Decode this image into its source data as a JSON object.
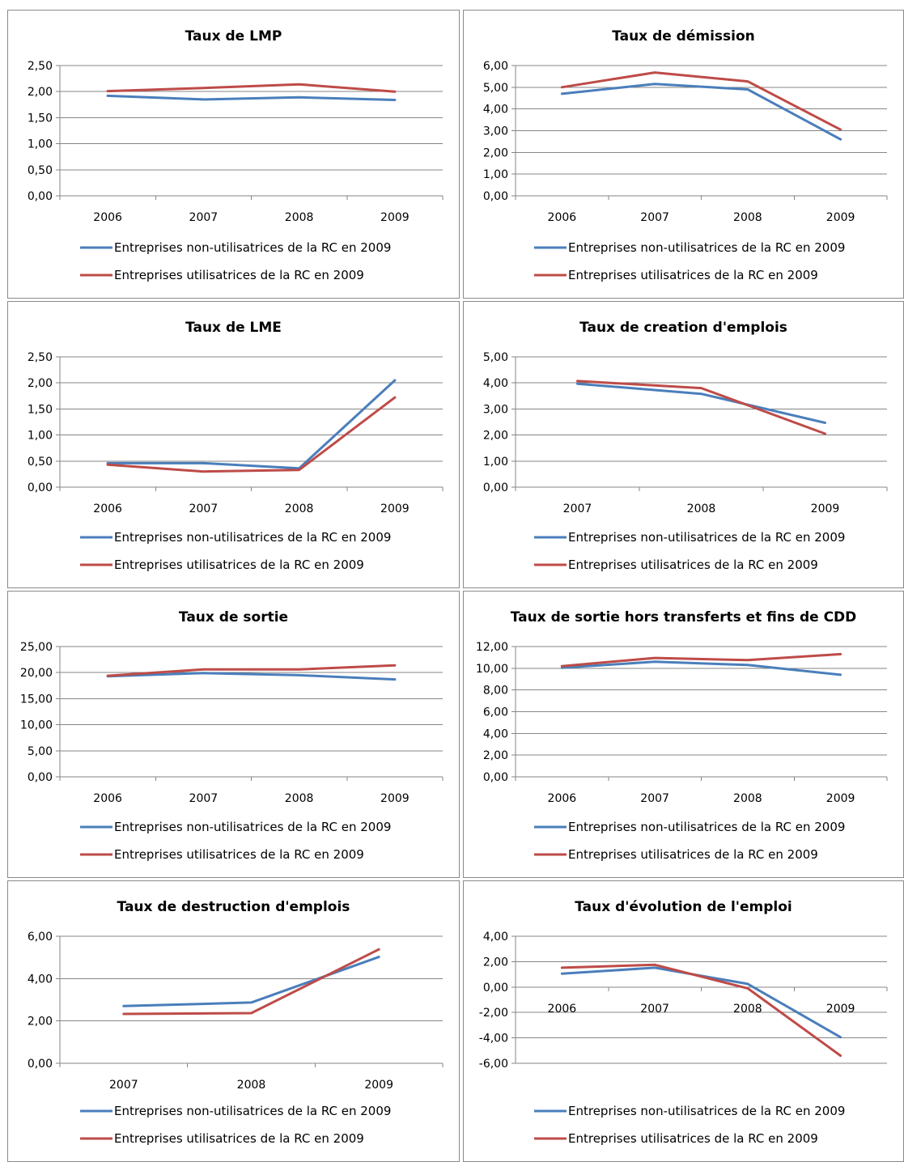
{
  "legend": {
    "series_a": "Entreprises non-utilisatrices de la RC en 2009",
    "series_b": "Entreprises utilisatrices de la RC en 2009"
  },
  "colors": {
    "series_a": "#4a7ebb",
    "series_b": "#be4b48",
    "axis": "#868686",
    "grid": "#868686"
  },
  "chart_data": [
    {
      "type": "line",
      "title": "Taux de LMP",
      "categories": [
        "2006",
        "2007",
        "2008",
        "2009"
      ],
      "ylim": [
        0,
        2.5
      ],
      "yticks": [
        "0,00",
        "0,50",
        "1,00",
        "1,50",
        "2,00",
        "2,50"
      ],
      "series": [
        {
          "name": "Entreprises non-utilisatrices de la RC en 2009",
          "values": [
            1.92,
            1.85,
            1.89,
            1.84
          ]
        },
        {
          "name": "Entreprises utilisatrices de la RC en 2009",
          "values": [
            2.01,
            2.07,
            2.14,
            2.0
          ]
        }
      ],
      "grid": true,
      "legend": "bottom"
    },
    {
      "type": "line",
      "title": "Taux de démission",
      "categories": [
        "2006",
        "2007",
        "2008",
        "2009"
      ],
      "ylim": [
        0,
        6
      ],
      "yticks": [
        "0,00",
        "1,00",
        "2,00",
        "3,00",
        "4,00",
        "5,00",
        "6,00"
      ],
      "series": [
        {
          "name": "Entreprises non-utilisatrices de la RC en 2009",
          "values": [
            4.7,
            5.15,
            4.9,
            2.6
          ]
        },
        {
          "name": "Entreprises utilisatrices de la RC en 2009",
          "values": [
            5.0,
            5.68,
            5.27,
            3.05
          ]
        }
      ],
      "grid": true,
      "legend": "bottom"
    },
    {
      "type": "line",
      "title": "Taux de LME",
      "categories": [
        "2006",
        "2007",
        "2008",
        "2009"
      ],
      "ylim": [
        0,
        2.5
      ],
      "yticks": [
        "0,00",
        "0,50",
        "1,00",
        "1,50",
        "2,00",
        "2,50"
      ],
      "series": [
        {
          "name": "Entreprises non-utilisatrices de la RC en 2009",
          "values": [
            0.46,
            0.46,
            0.36,
            2.05
          ]
        },
        {
          "name": "Entreprises utilisatrices de la RC en 2009",
          "values": [
            0.43,
            0.3,
            0.33,
            1.72
          ]
        }
      ],
      "grid": true,
      "legend": "bottom"
    },
    {
      "type": "line",
      "title": "Taux de creation d'emplois",
      "categories": [
        "2007",
        "2008",
        "2009"
      ],
      "ylim": [
        0,
        5
      ],
      "yticks": [
        "0,00",
        "1,00",
        "2,00",
        "3,00",
        "4,00",
        "5,00"
      ],
      "series": [
        {
          "name": "Entreprises non-utilisatrices de la RC en 2009",
          "values": [
            3.97,
            3.58,
            2.47
          ]
        },
        {
          "name": "Entreprises utilisatrices de la RC en 2009",
          "values": [
            4.07,
            3.8,
            2.05
          ]
        }
      ],
      "grid": true,
      "legend": "bottom"
    },
    {
      "type": "line",
      "title": "Taux de sortie",
      "categories": [
        "2006",
        "2007",
        "2008",
        "2009"
      ],
      "ylim": [
        0,
        25
      ],
      "yticks": [
        "0,00",
        "5,00",
        "10,00",
        "15,00",
        "20,00",
        "25,00"
      ],
      "series": [
        {
          "name": "Entreprises non-utilisatrices de la RC en 2009",
          "values": [
            19.3,
            19.9,
            19.5,
            18.7
          ]
        },
        {
          "name": "Entreprises utilisatrices de la RC en 2009",
          "values": [
            19.4,
            20.6,
            20.6,
            21.4
          ]
        }
      ],
      "grid": true,
      "legend": "bottom"
    },
    {
      "type": "line",
      "title": "Taux de sortie hors transferts et fins de CDD",
      "categories": [
        "2006",
        "2007",
        "2008",
        "2009"
      ],
      "ylim": [
        0,
        12
      ],
      "yticks": [
        "0,00",
        "2,00",
        "4,00",
        "6,00",
        "8,00",
        "10,00",
        "12,00"
      ],
      "series": [
        {
          "name": "Entreprises non-utilisatrices de la RC en 2009",
          "values": [
            10.05,
            10.6,
            10.3,
            9.4
          ]
        },
        {
          "name": "Entreprises utilisatrices de la RC en 2009",
          "values": [
            10.2,
            10.95,
            10.75,
            11.3
          ]
        }
      ],
      "grid": true,
      "legend": "bottom"
    },
    {
      "type": "line",
      "title": "Taux de destruction d'emplois",
      "categories": [
        "2007",
        "2008",
        "2009"
      ],
      "ylim": [
        0,
        6
      ],
      "yticks": [
        "0,00",
        "2,00",
        "4,00",
        "6,00"
      ],
      "series": [
        {
          "name": "Entreprises non-utilisatrices de la RC en 2009",
          "values": [
            2.7,
            2.87,
            5.02
          ]
        },
        {
          "name": "Entreprises utilisatrices de la RC en 2009",
          "values": [
            2.33,
            2.37,
            5.38
          ]
        }
      ],
      "grid": true,
      "legend": "bottom"
    },
    {
      "type": "line",
      "title": "Taux d'évolution de l'emploi",
      "categories": [
        "2006",
        "2007",
        "2008",
        "2009"
      ],
      "ylim": [
        -6,
        4
      ],
      "yticks": [
        "-6,00",
        "-4,00",
        "-2,00",
        "0,00",
        "2,00",
        "4,00"
      ],
      "series": [
        {
          "name": "Entreprises non-utilisatrices de la RC en 2009",
          "values": [
            1.05,
            1.52,
            0.25,
            -3.95
          ]
        },
        {
          "name": "Entreprises utilisatrices de la RC en 2009",
          "values": [
            1.52,
            1.75,
            -0.1,
            -5.4
          ]
        }
      ],
      "grid": true,
      "legend": "bottom"
    }
  ]
}
